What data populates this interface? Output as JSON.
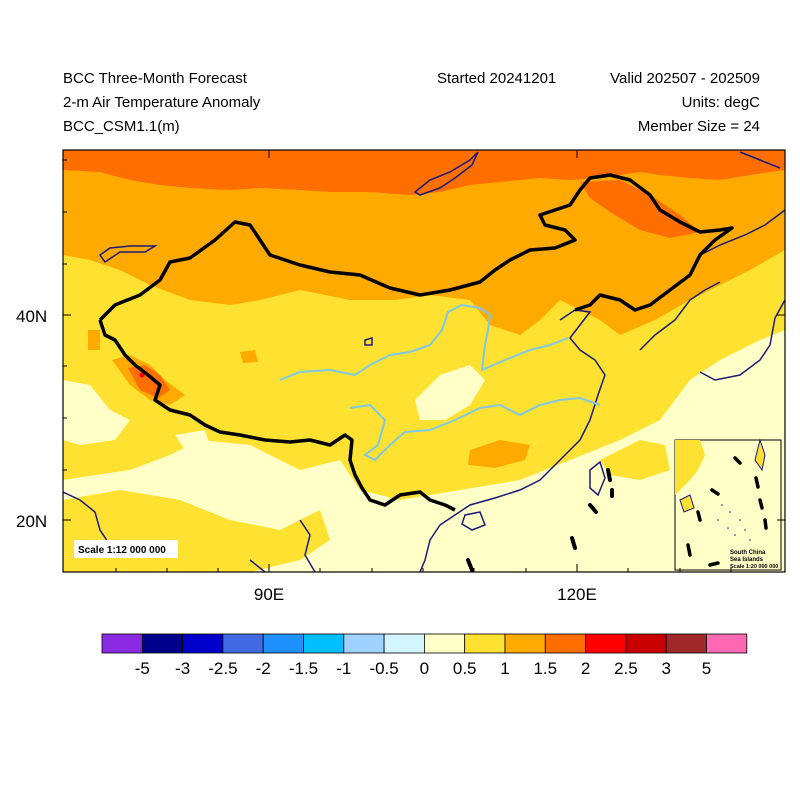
{
  "header": {
    "title": "BCC Three-Month Forecast",
    "variable": "2-m Air Temperature Anomaly",
    "model": "BCC_CSM1.1(m)",
    "started": "Started 20241201",
    "valid": "Valid 202507 - 202509",
    "units": "Units: degC",
    "member_size": "Member Size = 24"
  },
  "axes": {
    "y_ticks": [
      "40N",
      "20N"
    ],
    "x_ticks": [
      "90E",
      "120E"
    ]
  },
  "map": {
    "scale_main": "Scale 1:12 000 000",
    "inset_title_1": "South China",
    "inset_title_2": "Sea Islands",
    "inset_scale": "Scale 1:20 000 000"
  },
  "colorbar": {
    "colors": [
      "#8a2be2",
      "#00008b",
      "#0000cd",
      "#4169e1",
      "#1e90ff",
      "#00bfff",
      "#a0d2ff",
      "#d2f5ff",
      "#ffffc8",
      "#ffe132",
      "#ffaa00",
      "#ff6e00",
      "#ff0000",
      "#c80000",
      "#a02828",
      "#ff69b4"
    ],
    "labels": [
      "-5",
      "-3",
      "-2.5",
      "-2",
      "-1.5",
      "-1",
      "-0.5",
      "0",
      "0.5",
      "1",
      "1.5",
      "2",
      "2.5",
      "3",
      "5"
    ]
  }
}
